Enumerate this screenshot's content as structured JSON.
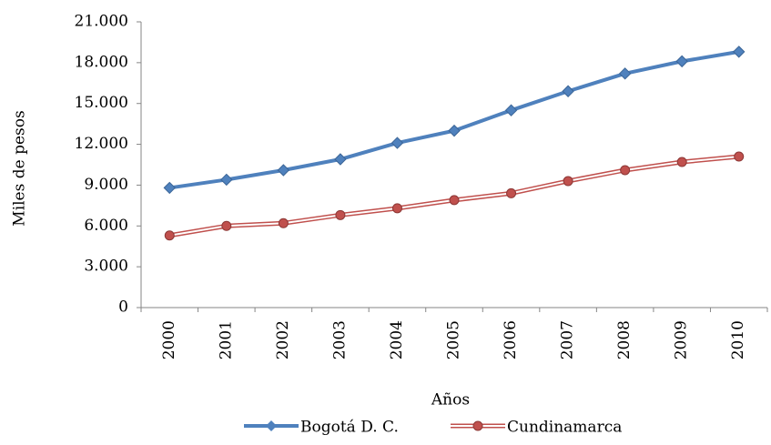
{
  "chart_data": {
    "type": "line",
    "categories": [
      "2000",
      "2001",
      "2002",
      "2003",
      "2004",
      "2005",
      "2006",
      "2007",
      "2008",
      "2009",
      "2010"
    ],
    "series": [
      {
        "name": "Bogotá D. C.",
        "color": "#4f81bd",
        "values": [
          8800,
          9400,
          10100,
          10900,
          12100,
          13000,
          14500,
          15900,
          17200,
          18100,
          18800
        ]
      },
      {
        "name": "Cundinamarca",
        "color": "#c0504d",
        "values": [
          5300,
          6000,
          6200,
          6800,
          7300,
          7900,
          8400,
          9300,
          10100,
          10700,
          11100
        ]
      }
    ],
    "ylim": [
      0,
      21000
    ],
    "yticks": [
      0,
      {
        "value": 3000,
        "label": "3.000"
      },
      {
        "value": 6000,
        "label": "6.000"
      },
      {
        "value": 9000,
        "label": "9.000"
      },
      {
        "value": 12000,
        "label": "12.000"
      },
      {
        "value": 15000,
        "label": "15.000"
      },
      {
        "value": 18000,
        "label": "18.000"
      },
      {
        "value": 21000,
        "label": "21.000"
      }
    ],
    "xlabel": "Años",
    "ylabel": "Miles de pesos",
    "legend": "bottom",
    "grid": false
  }
}
